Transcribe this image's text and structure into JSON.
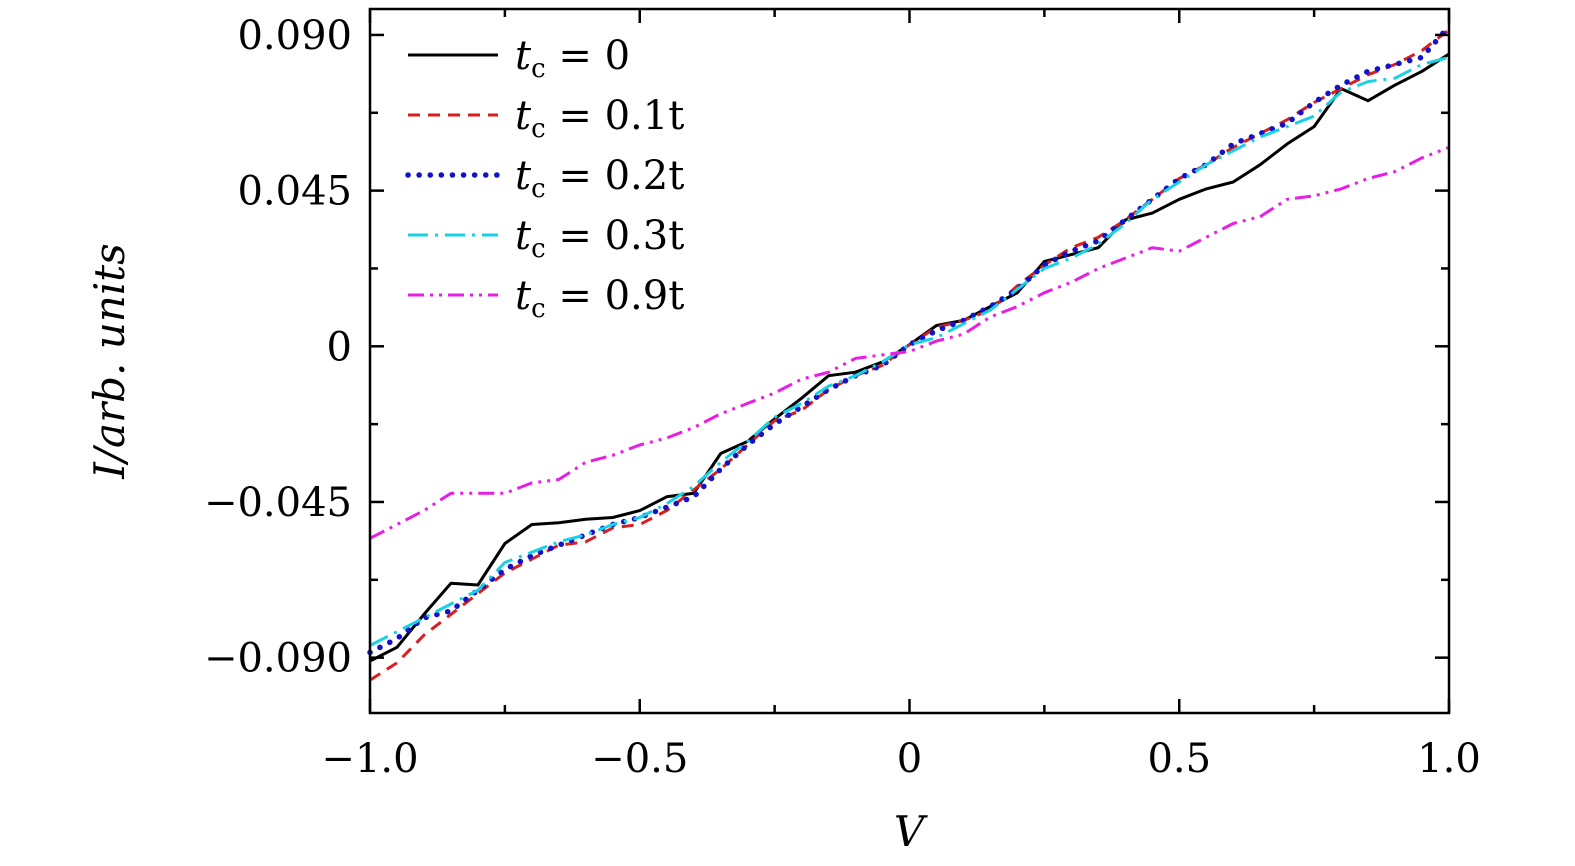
{
  "chart_data": {
    "type": "line",
    "title": "",
    "xlabel": "V",
    "ylabel": "I/arb. units",
    "xlim": [
      -1.0,
      1.0
    ],
    "ylim": [
      -0.106,
      0.0975
    ],
    "x_ticks": [
      -1.0,
      -0.5,
      0,
      0.5,
      1.0
    ],
    "x_tick_labels": [
      "−1.0",
      "−0.5",
      "0",
      "0.5",
      "1.0"
    ],
    "x_minor_ticks": [
      -0.75,
      -0.25,
      0.25,
      0.75
    ],
    "y_ticks": [
      -0.09,
      -0.045,
      0,
      0.045,
      0.09
    ],
    "y_tick_labels": [
      "−0.090",
      "−0.045",
      "0",
      "0.045",
      "0.090"
    ],
    "y_minor_ticks": [
      -0.0675,
      -0.0225,
      0.0225,
      0.0675
    ],
    "grid": false,
    "legend_position": "top-left",
    "series": [
      {
        "name": "t_c = 0",
        "legend_label": "t",
        "legend_sub": "c",
        "legend_value": " = 0",
        "color": "#000000",
        "style": "solid",
        "x": [
          -1.0,
          -0.95,
          -0.9,
          -0.85,
          -0.8,
          -0.75,
          -0.7,
          -0.65,
          -0.6,
          -0.55,
          -0.5,
          -0.45,
          -0.4,
          -0.35,
          -0.3,
          -0.25,
          -0.2,
          -0.15,
          -0.1,
          -0.05,
          0,
          0.05,
          0.1,
          0.15,
          0.2,
          0.25,
          0.3,
          0.35,
          0.4,
          0.45,
          0.5,
          0.55,
          0.6,
          0.65,
          0.7,
          0.75,
          0.8,
          0.85,
          0.9,
          0.95,
          1.0
        ],
        "y": [
          -0.091,
          -0.087,
          -0.0775,
          -0.0685,
          -0.069,
          -0.057,
          -0.0515,
          -0.051,
          -0.05,
          -0.0495,
          -0.0475,
          -0.0435,
          -0.0425,
          -0.031,
          -0.0275,
          -0.021,
          -0.015,
          -0.0085,
          -0.0075,
          -0.0045,
          0.0005,
          0.006,
          0.0075,
          0.0115,
          0.0155,
          0.0245,
          0.0265,
          0.0285,
          0.0365,
          0.0385,
          0.0425,
          0.0455,
          0.0475,
          0.0525,
          0.0585,
          0.0635,
          0.0745,
          0.071,
          0.0755,
          0.0795,
          0.0845
        ]
      },
      {
        "name": "t_c = 0.1t",
        "legend_label": "t",
        "legend_sub": "c",
        "legend_value": " = 0.1t",
        "color": "#d81e1e",
        "style": "dashed",
        "x": [
          -1.0,
          -0.95,
          -0.9,
          -0.85,
          -0.8,
          -0.75,
          -0.7,
          -0.65,
          -0.6,
          -0.55,
          -0.5,
          -0.45,
          -0.4,
          -0.35,
          -0.3,
          -0.25,
          -0.2,
          -0.15,
          -0.1,
          -0.05,
          0,
          0.05,
          0.1,
          0.15,
          0.2,
          0.25,
          0.3,
          0.35,
          0.4,
          0.45,
          0.5,
          0.55,
          0.6,
          0.65,
          0.7,
          0.75,
          0.8,
          0.85,
          0.9,
          0.95,
          1.0
        ],
        "y": [
          -0.0965,
          -0.0915,
          -0.0835,
          -0.0775,
          -0.0715,
          -0.0655,
          -0.0615,
          -0.0575,
          -0.0565,
          -0.0525,
          -0.0515,
          -0.0475,
          -0.0415,
          -0.0355,
          -0.0285,
          -0.0215,
          -0.0185,
          -0.0125,
          -0.0085,
          -0.0055,
          0.0005,
          0.0055,
          0.0075,
          0.0105,
          0.0175,
          0.0235,
          0.0285,
          0.0315,
          0.0365,
          0.0425,
          0.0485,
          0.0525,
          0.0575,
          0.0615,
          0.0655,
          0.0705,
          0.0745,
          0.0785,
          0.0815,
          0.0855,
          0.0915
        ]
      },
      {
        "name": "t_c = 0.2t",
        "legend_label": "t",
        "legend_sub": "c",
        "legend_value": " = 0.2t",
        "color": "#1212c8",
        "style": "dotted",
        "x": [
          -1.0,
          -0.95,
          -0.9,
          -0.85,
          -0.8,
          -0.75,
          -0.7,
          -0.65,
          -0.6,
          -0.55,
          -0.5,
          -0.45,
          -0.4,
          -0.35,
          -0.3,
          -0.25,
          -0.2,
          -0.15,
          -0.1,
          -0.05,
          0,
          0.05,
          0.1,
          0.15,
          0.2,
          0.25,
          0.3,
          0.35,
          0.4,
          0.45,
          0.5,
          0.55,
          0.6,
          0.65,
          0.7,
          0.75,
          0.8,
          0.85,
          0.9,
          0.95,
          1.0
        ],
        "y": [
          -0.0885,
          -0.0845,
          -0.0785,
          -0.0765,
          -0.0705,
          -0.0645,
          -0.0605,
          -0.0575,
          -0.0545,
          -0.0515,
          -0.0495,
          -0.0465,
          -0.0435,
          -0.0355,
          -0.0285,
          -0.0225,
          -0.0175,
          -0.0125,
          -0.0085,
          -0.0055,
          0.0005,
          0.0045,
          0.0075,
          0.0115,
          0.0165,
          0.0235,
          0.0275,
          0.0305,
          0.0365,
          0.0425,
          0.0485,
          0.0525,
          0.0585,
          0.0615,
          0.0645,
          0.0705,
          0.0755,
          0.0795,
          0.0815,
          0.0835,
          0.0925
        ]
      },
      {
        "name": "t_c = 0.3t",
        "legend_label": "t",
        "legend_sub": "c",
        "legend_value": " = 0.3t",
        "color": "#17d2e6",
        "style": "dashdot",
        "x": [
          -1.0,
          -0.95,
          -0.9,
          -0.85,
          -0.8,
          -0.75,
          -0.7,
          -0.65,
          -0.6,
          -0.55,
          -0.5,
          -0.45,
          -0.4,
          -0.35,
          -0.3,
          -0.25,
          -0.2,
          -0.15,
          -0.1,
          -0.05,
          0,
          0.05,
          0.1,
          0.15,
          0.2,
          0.25,
          0.3,
          0.35,
          0.4,
          0.45,
          0.5,
          0.55,
          0.6,
          0.65,
          0.7,
          0.75,
          0.8,
          0.85,
          0.9,
          0.95,
          1.0
        ],
        "y": [
          -0.0865,
          -0.0825,
          -0.0785,
          -0.0745,
          -0.0705,
          -0.0625,
          -0.0595,
          -0.0565,
          -0.0545,
          -0.0515,
          -0.0495,
          -0.0455,
          -0.0405,
          -0.0335,
          -0.0275,
          -0.0205,
          -0.0165,
          -0.0115,
          -0.0085,
          -0.0045,
          0.0005,
          0.0025,
          0.0065,
          0.0105,
          0.0165,
          0.0225,
          0.0255,
          0.0295,
          0.0355,
          0.0425,
          0.0475,
          0.0525,
          0.0565,
          0.0605,
          0.0635,
          0.0665,
          0.0735,
          0.0765,
          0.0775,
          0.0815,
          0.0835
        ]
      },
      {
        "name": "t_c = 0.9t",
        "legend_label": "t",
        "legend_sub": "c",
        "legend_value": " = 0.9t",
        "color": "#e61ee6",
        "style": "dashdotdot",
        "x": [
          -1.0,
          -0.95,
          -0.9,
          -0.85,
          -0.8,
          -0.75,
          -0.7,
          -0.65,
          -0.6,
          -0.55,
          -0.5,
          -0.45,
          -0.4,
          -0.35,
          -0.3,
          -0.25,
          -0.2,
          -0.15,
          -0.1,
          -0.05,
          0,
          0.05,
          0.1,
          0.15,
          0.2,
          0.25,
          0.3,
          0.35,
          0.4,
          0.45,
          0.5,
          0.55,
          0.6,
          0.65,
          0.7,
          0.75,
          0.8,
          0.85,
          0.9,
          0.95,
          1.0
        ],
        "y": [
          -0.0555,
          -0.0515,
          -0.0475,
          -0.0425,
          -0.0425,
          -0.0425,
          -0.0395,
          -0.0385,
          -0.0335,
          -0.0315,
          -0.0285,
          -0.0265,
          -0.0235,
          -0.0195,
          -0.0165,
          -0.0135,
          -0.0095,
          -0.0075,
          -0.0035,
          -0.0025,
          -0.0015,
          0.0015,
          0.0035,
          0.0085,
          0.0115,
          0.0155,
          0.0185,
          0.0225,
          0.0255,
          0.0285,
          0.0275,
          0.0315,
          0.0355,
          0.0375,
          0.0425,
          0.0435,
          0.0455,
          0.0485,
          0.0505,
          0.0545,
          0.0575
        ]
      }
    ]
  }
}
